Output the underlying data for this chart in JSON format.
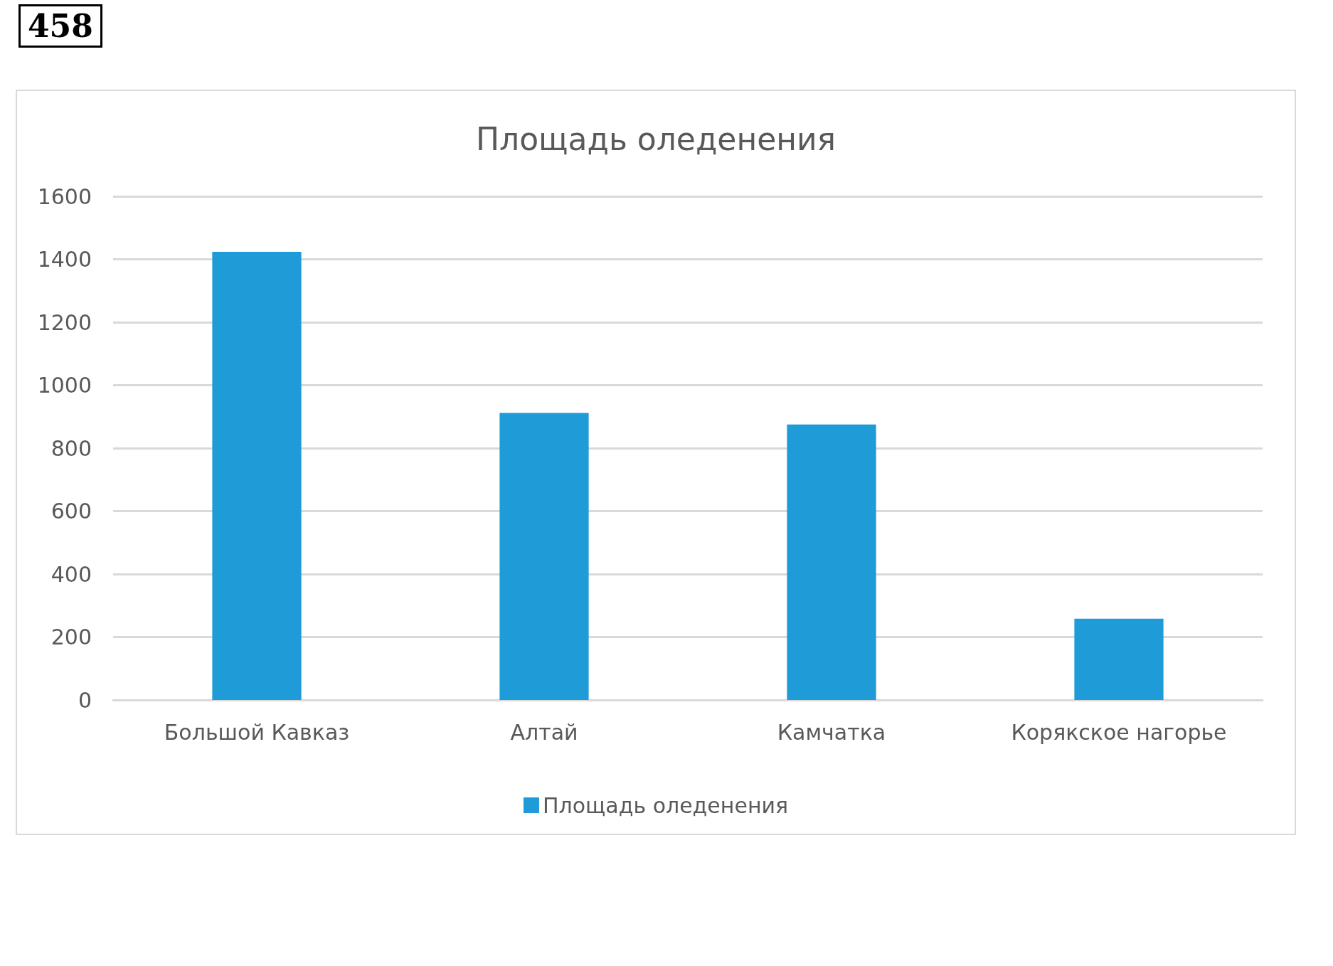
{
  "chart_data": {
    "type": "bar",
    "title": "Площадь оледенения",
    "annotations": [
      "458"
    ],
    "categories": [
      "Большой Кавказ",
      "Алтай",
      "Камчатка",
      "Корякское нагорье"
    ],
    "series": [
      {
        "name": "Площадь оледенения",
        "color": "#1f9bd7",
        "values": [
          1424,
          912,
          875,
          258
        ]
      }
    ],
    "ylim": [
      0,
      1600
    ],
    "yticks": [
      0,
      200,
      400,
      600,
      800,
      1000,
      1200,
      1400,
      1600
    ],
    "grid": "y",
    "legend": "bottom"
  }
}
